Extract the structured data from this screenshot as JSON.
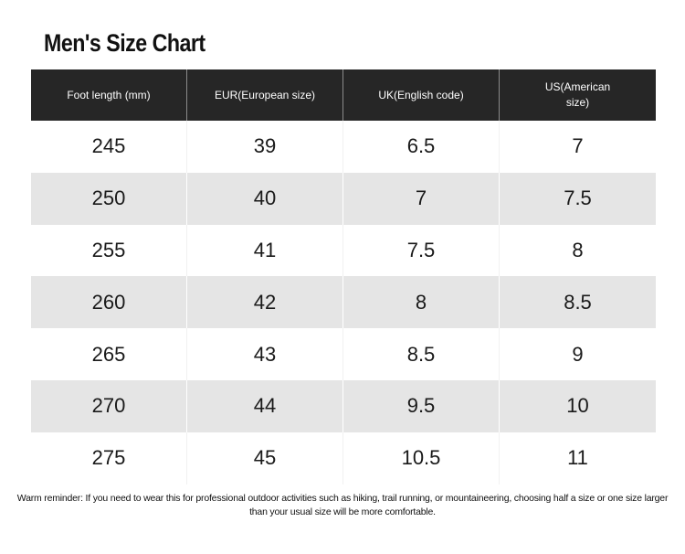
{
  "title": "Men's Size Chart",
  "table": {
    "headers": [
      "Foot length (mm)",
      "EUR(European size)",
      "UK(English code)",
      "US(American size)"
    ],
    "rows": [
      [
        "245",
        "39",
        "6.5",
        "7"
      ],
      [
        "250",
        "40",
        "7",
        "7.5"
      ],
      [
        "255",
        "41",
        "7.5",
        "8"
      ],
      [
        "260",
        "42",
        "8",
        "8.5"
      ],
      [
        "265",
        "43",
        "8.5",
        "9"
      ],
      [
        "270",
        "44",
        "9.5",
        "10"
      ],
      [
        "275",
        "45",
        "10.5",
        "11"
      ]
    ]
  },
  "reminder": "Warm reminder: If you need to wear this for professional outdoor activities such as hiking, trail running, or mountaineering, choosing half a size or one size larger than your usual size will be more comfortable.",
  "colors": {
    "header_bg": "#262626",
    "alt_row_bg": "#e5e5e5"
  }
}
